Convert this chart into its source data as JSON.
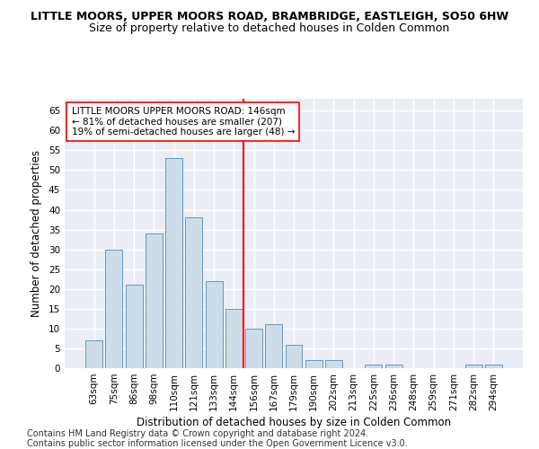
{
  "title": "LITTLE MOORS, UPPER MOORS ROAD, BRAMBRIDGE, EASTLEIGH, SO50 6HW",
  "subtitle": "Size of property relative to detached houses in Colden Common",
  "xlabel": "Distribution of detached houses by size in Colden Common",
  "ylabel": "Number of detached properties",
  "categories": [
    "63sqm",
    "75sqm",
    "86sqm",
    "98sqm",
    "110sqm",
    "121sqm",
    "133sqm",
    "144sqm",
    "156sqm",
    "167sqm",
    "179sqm",
    "190sqm",
    "202sqm",
    "213sqm",
    "225sqm",
    "236sqm",
    "248sqm",
    "259sqm",
    "271sqm",
    "282sqm",
    "294sqm"
  ],
  "values": [
    7,
    30,
    21,
    34,
    53,
    38,
    22,
    15,
    10,
    11,
    6,
    2,
    2,
    0,
    1,
    1,
    0,
    0,
    0,
    1,
    1
  ],
  "bar_color": "#ccdce8",
  "bar_edge_color": "#6699bb",
  "reference_line_x": 7.5,
  "reference_line_color": "red",
  "annotation_title": "LITTLE MOORS UPPER MOORS ROAD: 146sqm",
  "annotation_line1": "← 81% of detached houses are smaller (207)",
  "annotation_line2": "19% of semi-detached houses are larger (48) →",
  "ylim": [
    0,
    68
  ],
  "yticks": [
    0,
    5,
    10,
    15,
    20,
    25,
    30,
    35,
    40,
    45,
    50,
    55,
    60,
    65
  ],
  "footer1": "Contains HM Land Registry data © Crown copyright and database right 2024.",
  "footer2": "Contains public sector information licensed under the Open Government Licence v3.0.",
  "bg_color": "#e8eef4",
  "grid_color": "#ffffff",
  "fig_bg": "#ffffff",
  "title_fontsize": 9,
  "subtitle_fontsize": 9,
  "axis_label_fontsize": 8.5,
  "tick_fontsize": 7.5,
  "footer_fontsize": 7,
  "annot_fontsize": 7.5
}
